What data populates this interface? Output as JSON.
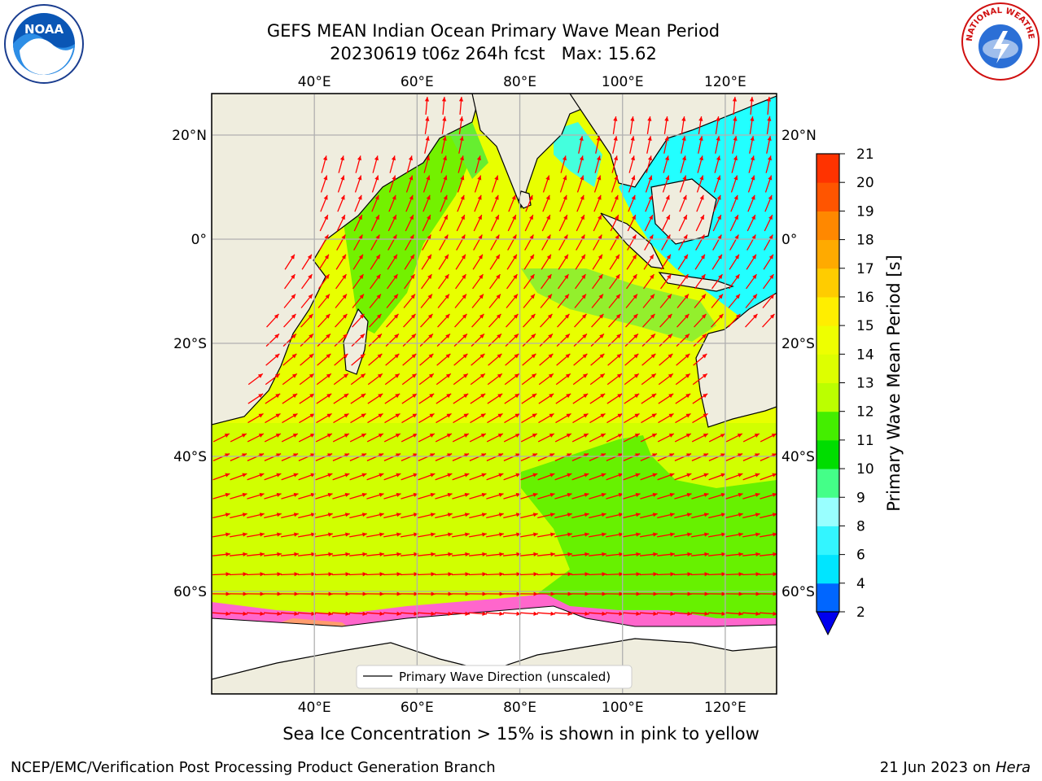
{
  "title_line1": "GEFS MEAN Indian Ocean Primary Wave Mean Period",
  "title_line2": "20230619 t06z 264h fcst   Max: 15.62",
  "caption": "Sea Ice Concentration > 15% is shown in pink to yellow",
  "footer_left": "NCEP/EMC/Verification Post Processing Product Generation Branch",
  "footer_date": "21 Jun 2023 on",
  "footer_host": "Hera",
  "logos": {
    "noaa_text": "NOAA",
    "nws_text": "NATIONAL WEATHER SERVICE"
  },
  "legend_label": "Primary Wave Direction (unscaled)",
  "colorbar": {
    "label": "Primary Wave Mean Period [s]",
    "ticks": [
      "2",
      "4",
      "6",
      "8",
      "9",
      "10",
      "11",
      "12",
      "13",
      "14",
      "15",
      "16",
      "17",
      "18",
      "19",
      "20",
      "21"
    ],
    "colors": [
      "#0066ff",
      "#00e5ff",
      "#33f5ff",
      "#99ffff",
      "#44ff88",
      "#00dd00",
      "#44ee00",
      "#bbff00",
      "#ddff00",
      "#eeff00",
      "#ffee00",
      "#ffcc00",
      "#ffaa00",
      "#ff8800",
      "#ff5500",
      "#ff3300"
    ],
    "extend_color": "#0000ee"
  },
  "map": {
    "lon_range": [
      20,
      130
    ],
    "lat_range": [
      -72,
      28
    ],
    "lon_ticks": [
      {
        "value": 40,
        "label": "40°E"
      },
      {
        "value": 60,
        "label": "60°E"
      },
      {
        "value": 80,
        "label": "80°E"
      },
      {
        "value": 100,
        "label": "100°E"
      },
      {
        "value": 120,
        "label": "120°E"
      }
    ],
    "lat_ticks": [
      {
        "value": 20,
        "label": "20°N"
      },
      {
        "value": 0,
        "label": "0°"
      },
      {
        "value": -20,
        "label": "20°S"
      },
      {
        "value": -40,
        "label": "40°S"
      },
      {
        "value": -60,
        "label": "60°S"
      }
    ],
    "colors": {
      "land": "#efedde",
      "ocean": "#e8ff00",
      "green": "#55ee00",
      "light_green": "#7ef04a",
      "cyan": "#22ffff",
      "ice": "#ffffff",
      "ice_edge": "#ff55dd",
      "arrows": "#ff0000",
      "grid": "#b0b0b0"
    }
  }
}
